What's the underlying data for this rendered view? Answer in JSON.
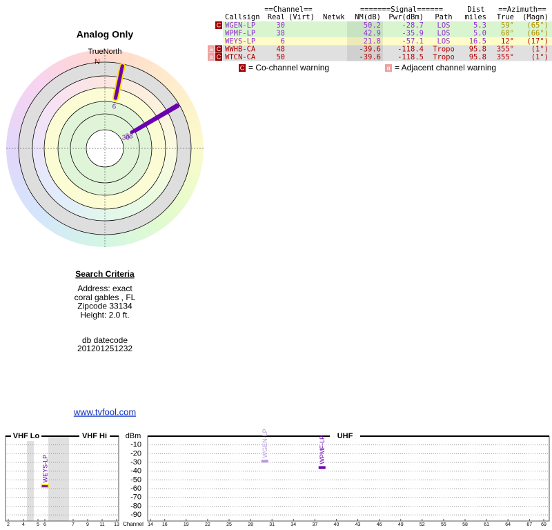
{
  "polar": {
    "title": "Analog Only",
    "north_label": "TrueNorth",
    "n_marker": "N",
    "stations": [
      {
        "label": "30",
        "azimuth": 59,
        "nm": 50.2,
        "color": "#6a00b0"
      },
      {
        "label": "38",
        "azimuth": 60,
        "nm": 42.9,
        "color": "#6a00b0"
      },
      {
        "label": "6",
        "azimuth": 12,
        "nm": 21.8,
        "color": "#6a00b0",
        "outline": "#ffe000"
      }
    ]
  },
  "table": {
    "header_groups": [
      "==Channel==",
      "=======Signal======",
      "Dist",
      "==Azimuth=="
    ],
    "columns": [
      {
        "key": "callsign",
        "label": "Callsign"
      },
      {
        "key": "real",
        "label": "Real"
      },
      {
        "key": "virt",
        "label": "(Virt)"
      },
      {
        "key": "netwk",
        "label": "Netwk"
      },
      {
        "key": "nm",
        "label": "NM(dB)"
      },
      {
        "key": "pwr",
        "label": "Pwr(dBm)"
      },
      {
        "key": "path",
        "label": "Path"
      },
      {
        "key": "dist",
        "label": "miles"
      },
      {
        "key": "true",
        "label": "True"
      },
      {
        "key": "magn",
        "label": "(Magn)"
      }
    ],
    "rows": [
      {
        "flags": [
          "C"
        ],
        "color": "#9030d0",
        "azimuth_color": "#b09000",
        "background": "#d8f5d0",
        "cells": {
          "callsign": "WGEN-LP",
          "real": "30",
          "nm": "50.2",
          "pwr": "-28.7",
          "path": "LOS",
          "dist": "5.3",
          "true": "59°",
          "magn": "(65°)"
        }
      },
      {
        "flags": [],
        "color": "#9030d0",
        "azimuth_color": "#b09000",
        "background": "#d8f5d0",
        "cells": {
          "callsign": "WPMF-LP",
          "real": "38",
          "nm": "42.9",
          "pwr": "-35.9",
          "path": "LOS",
          "dist": "5.0",
          "true": "60°",
          "magn": "(66°)"
        }
      },
      {
        "flags": [],
        "color": "#9030d0",
        "azimuth_color": "#c00000",
        "background": "#fffcc8",
        "cells": {
          "callsign": "WEYS-LP",
          "real": "6",
          "nm": "21.8",
          "pwr": "-57.1",
          "path": "LOS",
          "dist": "16.5",
          "true": "12°",
          "magn": "(17°)"
        }
      },
      {
        "flags": [
          "a",
          "C"
        ],
        "color": "#b00000",
        "azimuth_color": "#c00000",
        "background": "#e0e0e0",
        "cells": {
          "callsign": "WWHB-CA",
          "real": "48",
          "nm": "-39.6",
          "pwr": "-118.4",
          "path": "Tropo",
          "dist": "95.8",
          "true": "355°",
          "magn": "(1°)"
        }
      },
      {
        "flags": [
          "a",
          "C"
        ],
        "color": "#b00000",
        "azimuth_color": "#c00000",
        "background": "#e0e0e0",
        "cells": {
          "callsign": "WTCN-CA",
          "real": "50",
          "nm": "-39.6",
          "pwr": "-118.5",
          "path": "Tropo",
          "dist": "95.8",
          "true": "355°",
          "magn": "(1°)"
        }
      }
    ]
  },
  "legend": [
    {
      "flag": "C",
      "text": "= Co-channel warning"
    },
    {
      "flag": "a",
      "text": "= Adjacent channel warning"
    }
  ],
  "search": {
    "title": "Search Criteria",
    "lines": [
      "Address: exact",
      "coral gables , FL",
      "Zipcode 33134",
      "Height: 2.0 ft."
    ],
    "datecode_label": "db datecode",
    "datecode": "201201251232",
    "link": "www.tvfool.com"
  },
  "spectrum": {
    "bands": [
      "VHF Lo",
      "VHF Hi",
      "UHF"
    ],
    "y_label": "dBm",
    "x_label": "Channel",
    "ylim": [
      -97,
      0
    ],
    "yticks": [
      -10,
      -20,
      -30,
      -40,
      -50,
      -60,
      -70,
      -80,
      -90
    ],
    "vhf_ticks": [
      2,
      4,
      5,
      6,
      7,
      9,
      11,
      13
    ],
    "uhf_ticks": [
      14,
      16,
      19,
      22,
      25,
      28,
      31,
      34,
      37,
      40,
      43,
      46,
      49,
      52,
      55,
      58,
      61,
      64,
      67,
      69
    ],
    "stations": [
      {
        "label": "WEYS-LP",
        "channel": 6,
        "power": -57.1,
        "color": "#6a00b0",
        "outline": "#ffe000"
      },
      {
        "label": "WGEN-LP",
        "channel": 30,
        "power": -28.7,
        "color": "#b898e0"
      },
      {
        "label": "WPMF-LP",
        "channel": 38,
        "power": -35.9,
        "color": "#6a00b0"
      }
    ]
  }
}
